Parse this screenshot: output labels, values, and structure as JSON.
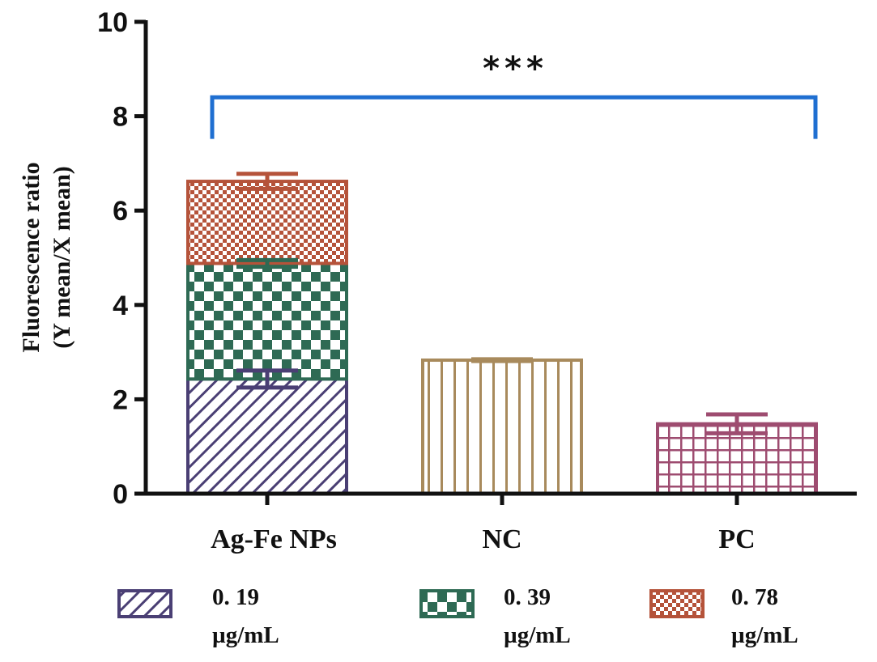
{
  "chart_data": {
    "type": "bar",
    "stacked": true,
    "title": "",
    "xlabel": "",
    "ylabel": [
      "Fluorescence ratio",
      "(Y mean/X mean)"
    ],
    "ylim": [
      0,
      10
    ],
    "yticks": [
      0,
      2,
      4,
      6,
      8,
      10
    ],
    "categories": [
      "Ag-Fe NPs",
      "NC",
      "PC"
    ],
    "segments": [
      {
        "category": "Ag-Fe NPs",
        "series": "0. 19 µg/mL",
        "bottom": 0,
        "top": 2.43,
        "error": 0.18,
        "color": "#4a3f74",
        "pattern": "diagonal"
      },
      {
        "category": "Ag-Fe NPs",
        "series": "0. 39 µg/mL",
        "bottom": 2.43,
        "top": 4.88,
        "error": 0.07,
        "color": "#2e6a54",
        "pattern": "checker"
      },
      {
        "category": "Ag-Fe NPs",
        "series": "0. 78 µg/mL",
        "bottom": 4.88,
        "top": 6.62,
        "error": 0.16,
        "color": "#b5533a",
        "pattern": "finecheck"
      },
      {
        "category": "NC",
        "series": "NC",
        "bottom": 0,
        "top": 2.83,
        "error": 0.02,
        "color": "#a88a5c",
        "pattern": "vertical"
      },
      {
        "category": "PC",
        "series": "PC",
        "bottom": 0,
        "top": 1.48,
        "error": 0.2,
        "color": "#9e4c70",
        "pattern": "grid"
      }
    ],
    "legend": [
      {
        "line1": "0. 19",
        "line2": "µg/mL",
        "color": "#4a3f74",
        "pattern": "diagonal"
      },
      {
        "line1": "0. 39",
        "line2": "µg/mL",
        "color": "#2e6a54",
        "pattern": "checker"
      },
      {
        "line1": "0. 78",
        "line2": "µg/mL",
        "color": "#b5533a",
        "pattern": "finecheck"
      }
    ],
    "significance": {
      "label": "***",
      "from": "Ag-Fe NPs",
      "to": "PC",
      "y": 8.4,
      "color": "#1f6fd1"
    }
  }
}
